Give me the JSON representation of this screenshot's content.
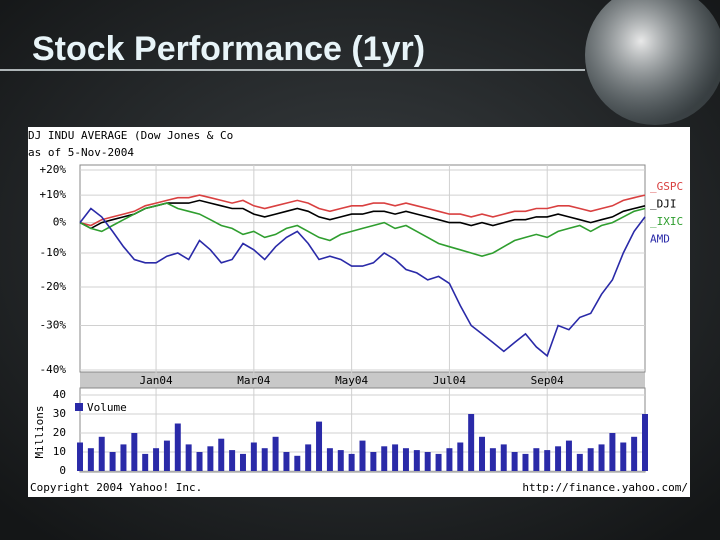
{
  "slide_title": "Stock Performance (1yr)",
  "footer": {
    "left": "Copyright 2004 Yahoo! Inc.",
    "right": "http://finance.yahoo.com/"
  },
  "chart_data": [
    {
      "type": "line",
      "title": "DJ INDU AVERAGE (Dow Jones & Co",
      "subtitle": "as of  5-Nov-2004",
      "log_scale": true,
      "grid": true,
      "legend": "right",
      "categories": [
        null,
        null,
        null,
        null,
        null,
        null,
        null,
        "Jan04",
        null,
        null,
        null,
        null,
        null,
        null,
        null,
        null,
        "Mar04",
        null,
        null,
        null,
        null,
        null,
        null,
        null,
        null,
        "May04",
        null,
        null,
        null,
        null,
        null,
        null,
        null,
        null,
        "Jul04",
        null,
        null,
        null,
        null,
        null,
        null,
        null,
        null,
        "Sep04",
        null,
        null,
        null,
        null,
        null,
        null,
        null,
        null,
        null
      ],
      "ylim": [
        -40,
        20
      ],
      "yticks": [
        {
          "value": 20,
          "label": "+20%"
        },
        {
          "value": 10,
          "label": "+10%"
        },
        {
          "value": 0,
          "label": "0%"
        },
        {
          "value": -10,
          "label": "-10%"
        },
        {
          "value": -20,
          "label": "-20%"
        },
        {
          "value": -30,
          "label": "-30%"
        },
        {
          "value": -40,
          "label": "-40%"
        }
      ],
      "series": [
        {
          "name": "_GSPC",
          "color": "#d94040",
          "values": [
            0,
            -1,
            1,
            2,
            3,
            4,
            6,
            7,
            8,
            9,
            9,
            10,
            9,
            8,
            7,
            8,
            6,
            5,
            6,
            7,
            8,
            7,
            5,
            4,
            5,
            6,
            6,
            7,
            7,
            6,
            7,
            6,
            5,
            4,
            3,
            3,
            2,
            3,
            2,
            3,
            4,
            4,
            5,
            5,
            6,
            6,
            5,
            4,
            5,
            6,
            8,
            9,
            10
          ]
        },
        {
          "name": "_DJI",
          "color": "#000000",
          "values": [
            0,
            -2,
            0,
            1,
            2,
            3,
            5,
            6,
            7,
            7,
            7,
            8,
            7,
            6,
            5,
            5,
            3,
            2,
            3,
            4,
            5,
            4,
            2,
            1,
            2,
            3,
            3,
            4,
            4,
            3,
            4,
            3,
            2,
            1,
            0,
            0,
            -1,
            0,
            -1,
            0,
            1,
            1,
            2,
            2,
            3,
            2,
            1,
            0,
            1,
            2,
            4,
            5,
            6
          ]
        },
        {
          "name": "_IXIC",
          "color": "#2f9e2f",
          "values": [
            0,
            -2,
            -3,
            -1,
            1,
            3,
            5,
            6,
            7,
            5,
            4,
            3,
            1,
            -1,
            -2,
            -4,
            -3,
            -5,
            -4,
            -2,
            -1,
            -3,
            -5,
            -6,
            -4,
            -3,
            -2,
            -1,
            0,
            -2,
            -1,
            -3,
            -5,
            -7,
            -8,
            -9,
            -10,
            -11,
            -10,
            -8,
            -6,
            -5,
            -4,
            -5,
            -3,
            -2,
            -1,
            -3,
            -1,
            0,
            2,
            4,
            5
          ]
        },
        {
          "name": "AMD",
          "color": "#2a2aa8",
          "values": [
            0,
            5,
            2,
            -3,
            -8,
            -12,
            -13,
            -13,
            -11,
            -10,
            -12,
            -6,
            -9,
            -13,
            -12,
            -7,
            -9,
            -12,
            -8,
            -5,
            -3,
            -7,
            -12,
            -11,
            -12,
            -14,
            -14,
            -13,
            -10,
            -12,
            -15,
            -16,
            -18,
            -17,
            -19,
            -25,
            -30,
            -32,
            -34,
            -36,
            -34,
            -32,
            -35,
            -37,
            -30,
            -31,
            -28,
            -27,
            -22,
            -18,
            -10,
            -3,
            2
          ]
        }
      ]
    },
    {
      "type": "bar",
      "ylabel": "Millions",
      "ylim": [
        0,
        40
      ],
      "yticks": [
        0,
        10,
        20,
        30,
        40
      ],
      "series": [
        {
          "name": "Volume",
          "color": "#2a2aa8",
          "values": [
            15,
            12,
            18,
            10,
            14,
            20,
            9,
            12,
            16,
            25,
            14,
            10,
            13,
            17,
            11,
            9,
            15,
            12,
            18,
            10,
            8,
            14,
            26,
            12,
            11,
            9,
            16,
            10,
            13,
            14,
            12,
            11,
            10,
            9,
            12,
            15,
            30,
            18,
            12,
            14,
            10,
            9,
            12,
            11,
            13,
            16,
            9,
            12,
            14,
            20,
            15,
            18,
            30
          ]
        }
      ]
    }
  ]
}
